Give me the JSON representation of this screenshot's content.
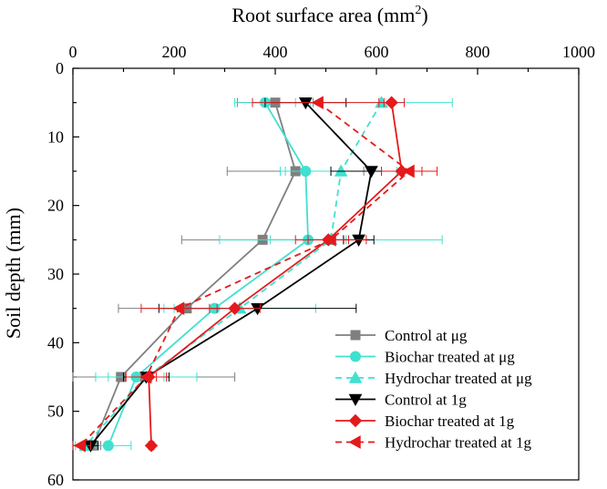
{
  "chart_data": {
    "type": "line",
    "title": "",
    "xlabel": {
      "text": "Root surface area (mm",
      "sup": "2",
      "tail": ")"
    },
    "ylabel": "Soil depth (mm)",
    "xlim": [
      0,
      1000
    ],
    "ylim": [
      0,
      60
    ],
    "y_inverted": true,
    "x_ticks": [
      0,
      200,
      400,
      600,
      800,
      1000
    ],
    "y_ticks": [
      0,
      10,
      20,
      30,
      40,
      50,
      60
    ],
    "x_tick_labels": [
      "0",
      "200",
      "400",
      "600",
      "800",
      "1000"
    ],
    "y_tick_labels": [
      "0",
      "10",
      "20",
      "30",
      "40",
      "50",
      "60"
    ],
    "legend_position": "bottom-right",
    "depths": [
      5,
      15,
      25,
      35,
      45,
      55
    ],
    "series": [
      {
        "name": "Control at μg",
        "color": "#7f7f7f",
        "dash": "solid",
        "marker": "square",
        "x": [
          400,
          440,
          375,
          225,
          95,
          40
        ],
        "err": [
          75,
          135,
          160,
          135,
          225,
          15
        ]
      },
      {
        "name": "Biochar treated at μg",
        "color": "#40e0d0",
        "dash": "solid",
        "marker": "circle",
        "x": [
          380,
          460,
          465,
          280,
          125,
          70
        ],
        "err": [
          60,
          50,
          75,
          80,
          55,
          45
        ]
      },
      {
        "name": "Hydrochar treated at μg",
        "color": "#40e0d0",
        "dash": "dashed",
        "marker": "triangle-up",
        "x": [
          610,
          530,
          510,
          330,
          145,
          25
        ],
        "err": [
          140,
          110,
          220,
          150,
          100,
          20
        ]
      },
      {
        "name": "Control at 1g",
        "color": "#000000",
        "dash": "solid",
        "marker": "triangle-down",
        "x": [
          460,
          590,
          565,
          365,
          145,
          35
        ],
        "err": [
          80,
          80,
          30,
          195,
          45,
          15
        ]
      },
      {
        "name": "Biochar treated at 1g",
        "color": "#e41a1c",
        "dash": "solid",
        "marker": "diamond",
        "x": [
          630,
          650,
          505,
          320,
          150,
          155
        ],
        "err": [
          25,
          40,
          40,
          50,
          15,
          5
        ]
      },
      {
        "name": "Hydrochar treated at 1g",
        "color": "#e41a1c",
        "dash": "dashed",
        "marker": "triangle-left",
        "x": [
          485,
          665,
          510,
          210,
          145,
          15
        ],
        "err": [
          130,
          55,
          70,
          75,
          40,
          20
        ]
      }
    ]
  }
}
